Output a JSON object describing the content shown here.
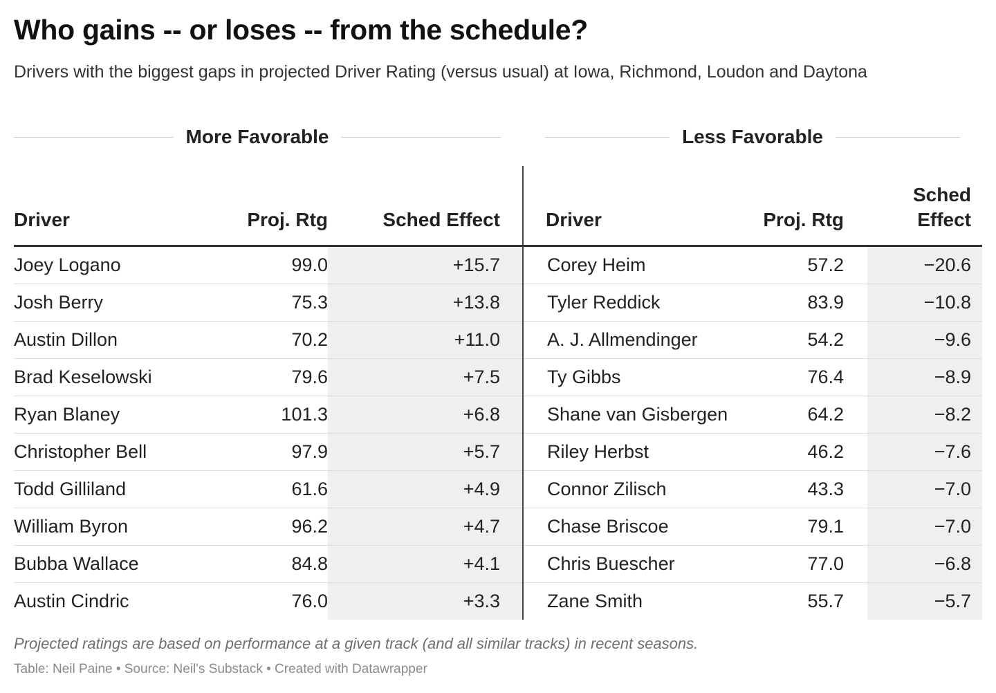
{
  "title": "Who gains -- or loses -- from the schedule?",
  "subtitle": "Drivers with the biggest gaps in projected Driver Rating (versus usual) at Iowa, Richmond, Loudon and Daytona",
  "groups": {
    "left": "More Favorable",
    "right": "Less Favorable"
  },
  "columns": {
    "driver": "Driver",
    "proj_rtg": "Proj. Rtg",
    "sched_effect": "Sched Effect",
    "sched_effect_line1": "Sched",
    "sched_effect_line2": "Effect"
  },
  "chart_data": {
    "type": "table",
    "title": "Who gains -- or loses -- from the schedule?",
    "more_favorable": [
      {
        "driver": "Joey Logano",
        "proj_rtg": "99.0",
        "sched_effect": "+15.7"
      },
      {
        "driver": "Josh Berry",
        "proj_rtg": "75.3",
        "sched_effect": "+13.8"
      },
      {
        "driver": "Austin Dillon",
        "proj_rtg": "70.2",
        "sched_effect": "+11.0"
      },
      {
        "driver": "Brad Keselowski",
        "proj_rtg": "79.6",
        "sched_effect": "+7.5"
      },
      {
        "driver": "Ryan Blaney",
        "proj_rtg": "101.3",
        "sched_effect": "+6.8"
      },
      {
        "driver": "Christopher Bell",
        "proj_rtg": "97.9",
        "sched_effect": "+5.7"
      },
      {
        "driver": "Todd Gilliland",
        "proj_rtg": "61.6",
        "sched_effect": "+4.9"
      },
      {
        "driver": "William Byron",
        "proj_rtg": "96.2",
        "sched_effect": "+4.7"
      },
      {
        "driver": "Bubba Wallace",
        "proj_rtg": "84.8",
        "sched_effect": "+4.1"
      },
      {
        "driver": "Austin Cindric",
        "proj_rtg": "76.0",
        "sched_effect": "+3.3"
      }
    ],
    "less_favorable": [
      {
        "driver": "Corey Heim",
        "proj_rtg": "57.2",
        "sched_effect": "−20.6"
      },
      {
        "driver": "Tyler Reddick",
        "proj_rtg": "83.9",
        "sched_effect": "−10.8"
      },
      {
        "driver": "A. J. Allmendinger",
        "proj_rtg": "54.2",
        "sched_effect": "−9.6"
      },
      {
        "driver": "Ty Gibbs",
        "proj_rtg": "76.4",
        "sched_effect": "−8.9"
      },
      {
        "driver": "Shane van Gisbergen",
        "proj_rtg": "64.2",
        "sched_effect": "−8.2"
      },
      {
        "driver": "Riley Herbst",
        "proj_rtg": "46.2",
        "sched_effect": "−7.6"
      },
      {
        "driver": "Connor Zilisch",
        "proj_rtg": "43.3",
        "sched_effect": "−7.0"
      },
      {
        "driver": "Chase Briscoe",
        "proj_rtg": "79.1",
        "sched_effect": "−7.0"
      },
      {
        "driver": "Chris Buescher",
        "proj_rtg": "77.0",
        "sched_effect": "−6.8"
      },
      {
        "driver": "Zane Smith",
        "proj_rtg": "55.7",
        "sched_effect": "−5.7"
      }
    ]
  },
  "footnote": "Projected ratings are based on performance at a given track (and all similar tracks) in recent seasons.",
  "credit": "Table: Neil Paine • Source: Neil's Substack • Created with Datawrapper",
  "colors": {
    "effect_cell_bg": "#efefef",
    "divider": "#444444"
  }
}
